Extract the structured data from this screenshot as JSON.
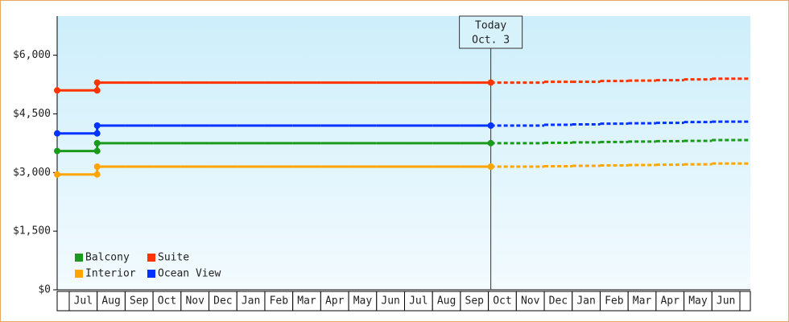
{
  "chart_data": {
    "type": "step-line",
    "categories": [
      "Jul",
      "Aug",
      "Sep",
      "Oct",
      "Nov",
      "Dec",
      "Jan",
      "Feb",
      "Mar",
      "Apr",
      "May",
      "Jun",
      "Jul",
      "Aug",
      "Sep",
      "Oct",
      "Nov",
      "Dec",
      "Jan",
      "Feb",
      "Mar",
      "Apr",
      "May",
      "Jun"
    ],
    "today": {
      "title": "Today",
      "date": "Oct. 3"
    },
    "series": [
      {
        "name": "Balcony",
        "color": "#1a9a1a",
        "values": [
          3550,
          3750,
          3750,
          3750,
          3750,
          3750,
          3750,
          3750,
          3750,
          3750,
          3750,
          3750,
          3750,
          3750,
          3750,
          null,
          null,
          null,
          null,
          null,
          null,
          null,
          null,
          null
        ],
        "forecast": [
          null,
          null,
          null,
          null,
          null,
          null,
          null,
          null,
          null,
          null,
          null,
          null,
          null,
          null,
          null,
          3750,
          3750,
          3760,
          3770,
          3780,
          3790,
          3800,
          3810,
          3830
        ]
      },
      {
        "name": "Suite",
        "color": "#ff3300",
        "values": [
          5100,
          5300,
          5300,
          5300,
          5300,
          5300,
          5300,
          5300,
          5300,
          5300,
          5300,
          5300,
          5300,
          5300,
          5300,
          null,
          null,
          null,
          null,
          null,
          null,
          null,
          null,
          null
        ],
        "forecast": [
          null,
          null,
          null,
          null,
          null,
          null,
          null,
          null,
          null,
          null,
          null,
          null,
          null,
          null,
          null,
          5300,
          5300,
          5320,
          5320,
          5340,
          5350,
          5360,
          5380,
          5400
        ]
      },
      {
        "name": "Interior",
        "color": "#ffa500",
        "values": [
          2950,
          3150,
          3150,
          3150,
          3150,
          3150,
          3150,
          3150,
          3150,
          3150,
          3150,
          3150,
          3150,
          3150,
          3150,
          null,
          null,
          null,
          null,
          null,
          null,
          null,
          null,
          null
        ],
        "forecast": [
          null,
          null,
          null,
          null,
          null,
          null,
          null,
          null,
          null,
          null,
          null,
          null,
          null,
          null,
          null,
          3150,
          3150,
          3160,
          3170,
          3180,
          3190,
          3200,
          3210,
          3230
        ]
      },
      {
        "name": "Ocean View",
        "color": "#0033ff",
        "values": [
          4000,
          4200,
          4200,
          4200,
          4200,
          4200,
          4200,
          4200,
          4200,
          4200,
          4200,
          4200,
          4200,
          4200,
          4200,
          null,
          null,
          null,
          null,
          null,
          null,
          null,
          null,
          null
        ],
        "forecast": [
          null,
          null,
          null,
          null,
          null,
          null,
          null,
          null,
          null,
          null,
          null,
          null,
          null,
          null,
          null,
          4200,
          4200,
          4220,
          4230,
          4250,
          4260,
          4270,
          4290,
          4300
        ]
      }
    ],
    "ylim": [
      0,
      7000
    ],
    "yticks": [
      {
        "value": 0,
        "label": "$0"
      },
      {
        "value": 1500,
        "label": "$1,500"
      },
      {
        "value": 3000,
        "label": "$3,000"
      },
      {
        "value": 4500,
        "label": "$4,500"
      },
      {
        "value": 6000,
        "label": "$6,000"
      }
    ],
    "legend": "bottom-left"
  }
}
